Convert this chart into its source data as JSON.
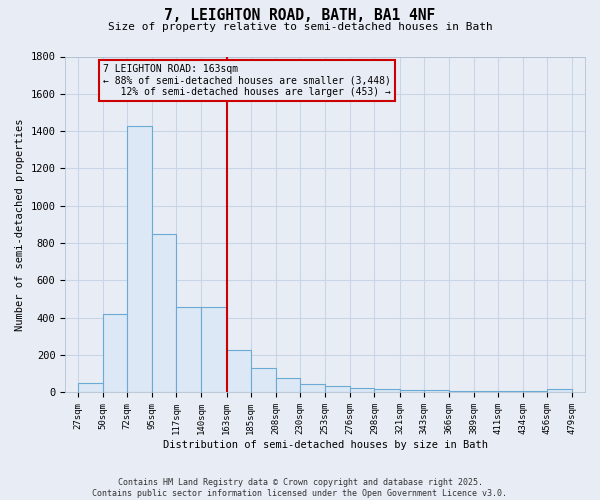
{
  "title": "7, LEIGHTON ROAD, BATH, BA1 4NF",
  "subtitle": "Size of property relative to semi-detached houses in Bath",
  "xlabel": "Distribution of semi-detached houses by size in Bath",
  "ylabel": "Number of semi-detached properties",
  "property_size": 163,
  "property_label": "7 LEIGHTON ROAD: 163sqm",
  "pct_smaller": 88,
  "pct_larger": 12,
  "n_smaller": 3448,
  "n_larger": 453,
  "bin_edges": [
    27,
    50,
    72,
    95,
    117,
    140,
    163,
    185,
    208,
    230,
    253,
    276,
    298,
    321,
    343,
    366,
    389,
    411,
    434,
    456,
    479
  ],
  "counts": [
    50,
    420,
    1430,
    850,
    460,
    460,
    225,
    130,
    75,
    45,
    35,
    25,
    20,
    15,
    15,
    10,
    10,
    8,
    8,
    20
  ],
  "bar_face_color": "#dce8f5",
  "bar_edge_color": "#6aaad4",
  "vline_color": "#cc0000",
  "annotation_box_color": "#cc0000",
  "background_color": "#e8edf5",
  "grid_color": "#c8d4e8",
  "ylim": [
    0,
    1800
  ],
  "yticks": [
    0,
    200,
    400,
    600,
    800,
    1000,
    1200,
    1400,
    1600,
    1800
  ],
  "footer": "Contains HM Land Registry data © Crown copyright and database right 2025.\nContains public sector information licensed under the Open Government Licence v3.0."
}
